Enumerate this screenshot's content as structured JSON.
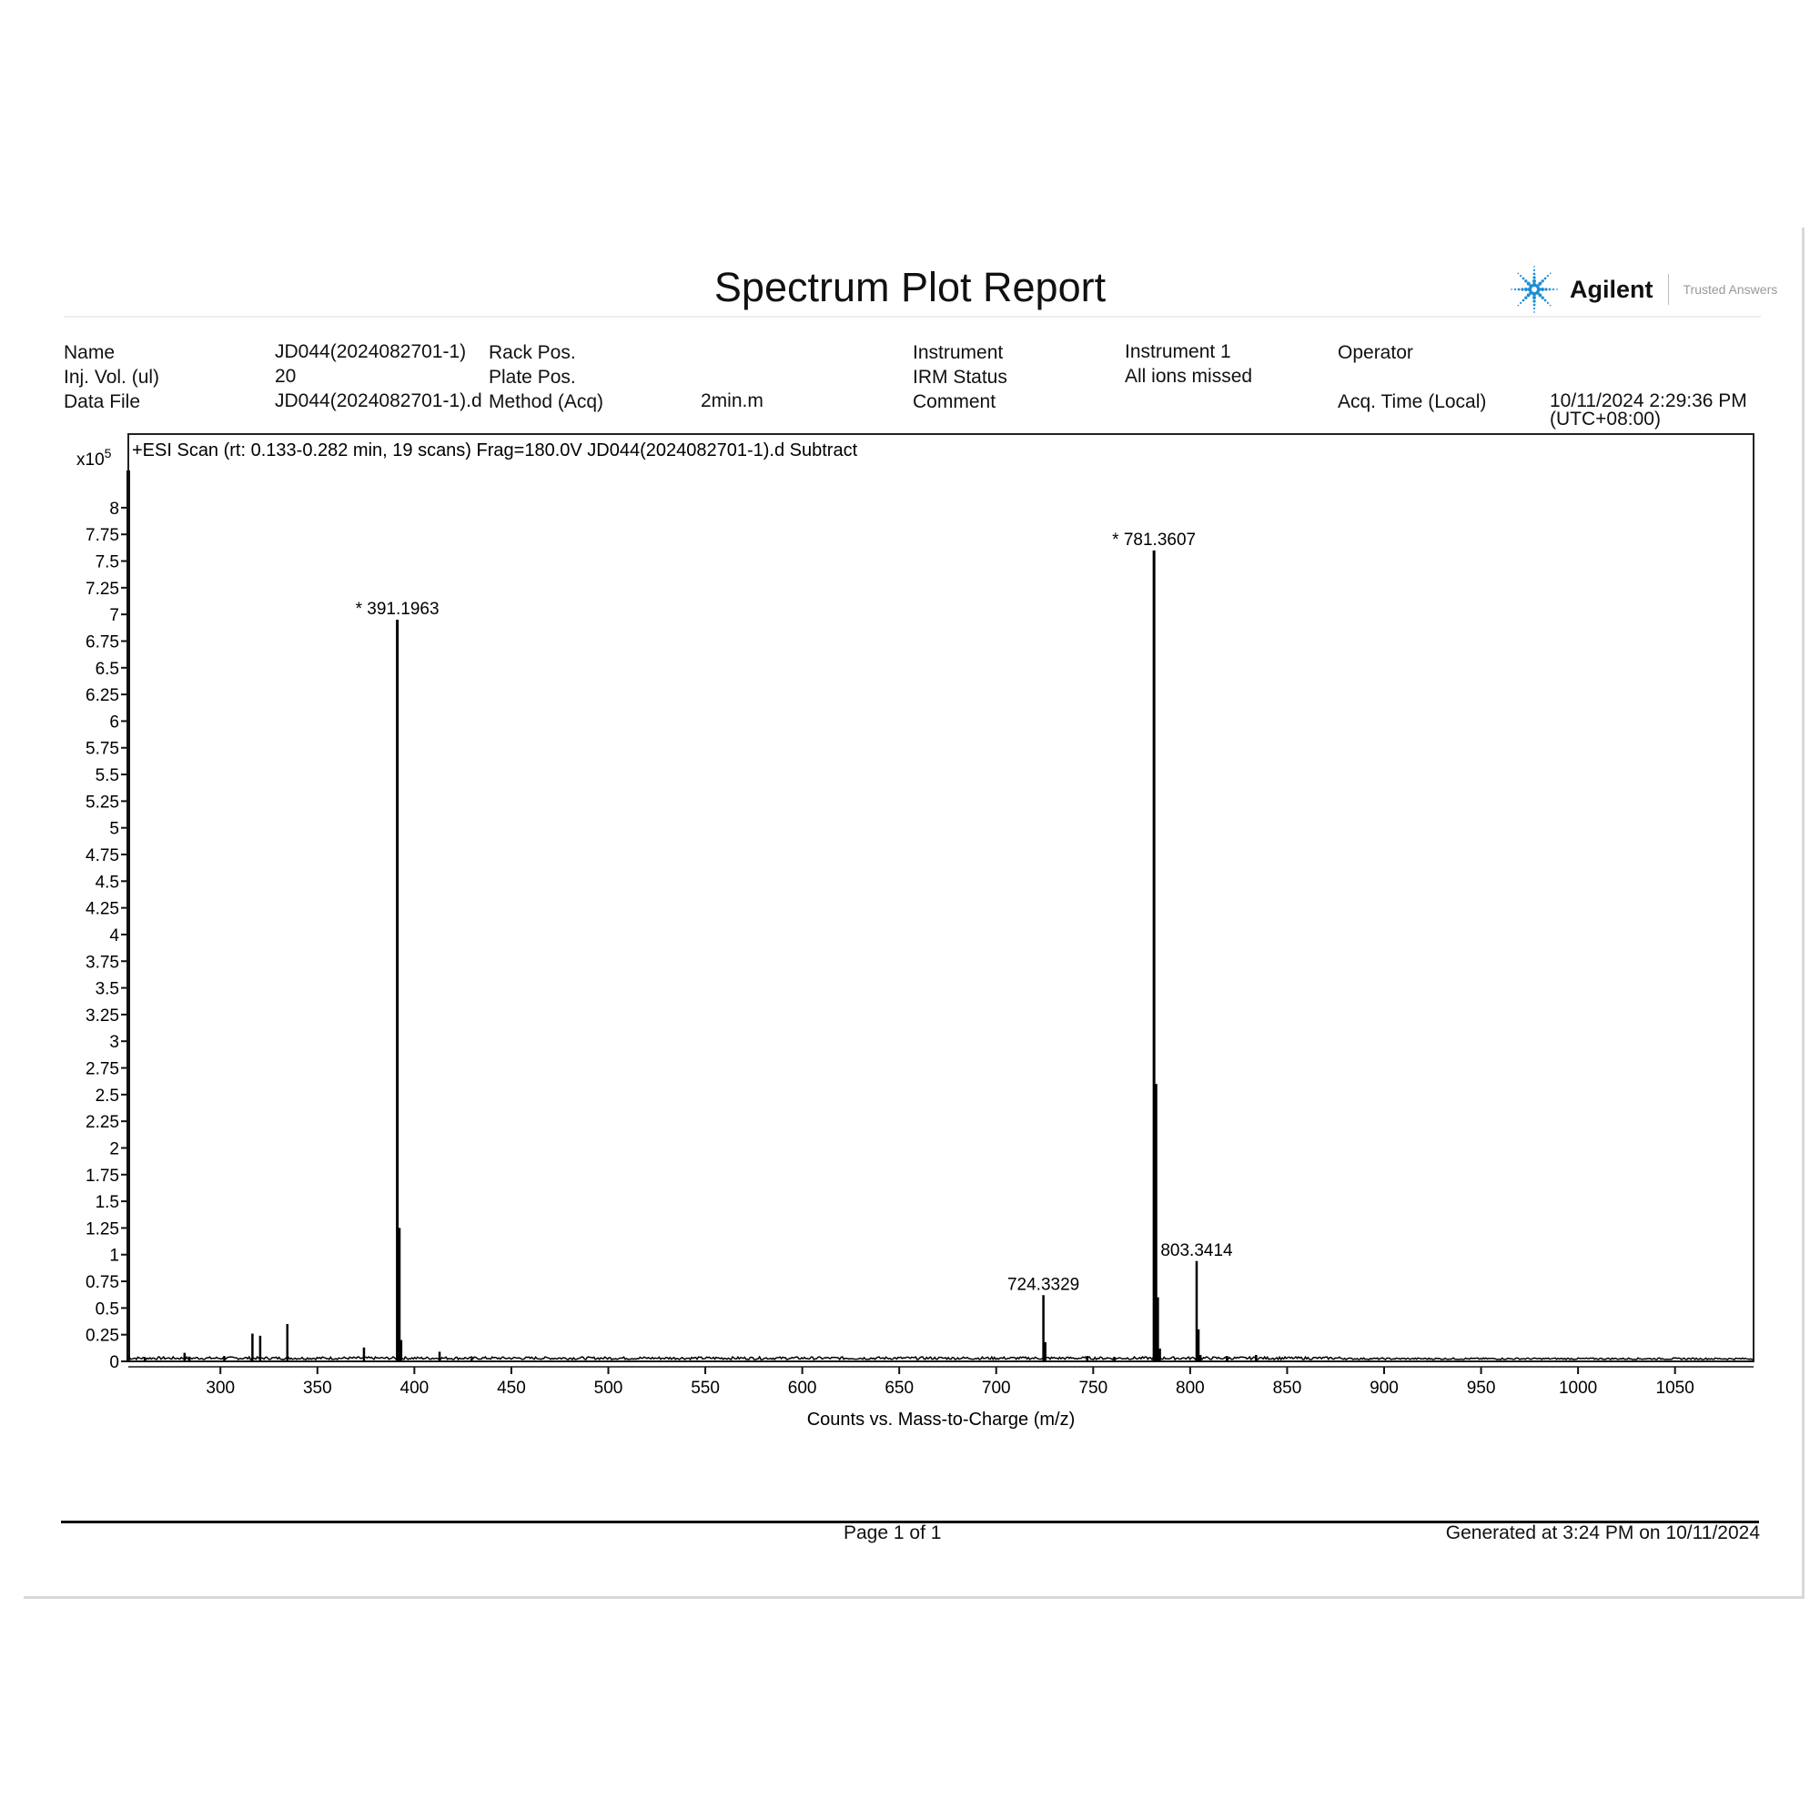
{
  "report": {
    "title": "Spectrum Plot Report",
    "logo": {
      "brand": "Agilent",
      "tagline": "Trusted Answers",
      "color": "#1a8fd6"
    },
    "meta": [
      {
        "label": "Name",
        "value": "JD044(2024082701-1)"
      },
      {
        "label": "Rack Pos.",
        "value": ""
      },
      {
        "label": "Instrument",
        "value": "Instrument 1"
      },
      {
        "label": "Operator",
        "value": ""
      },
      {
        "label": "Inj. Vol. (ul)",
        "value": "20"
      },
      {
        "label": "Plate Pos.",
        "value": ""
      },
      {
        "label": "IRM Status",
        "value": "All ions missed"
      },
      {
        "label": "Data File",
        "value": "JD044(2024082701-1).d"
      },
      {
        "label": "Method (Acq)",
        "value": "2min.m"
      },
      {
        "label": "Comment",
        "value": ""
      },
      {
        "label": "Acq. Time (Local)",
        "value": "10/11/2024 2:29:36 PM (UTC+08:00)"
      }
    ],
    "footer": {
      "page": "Page 1 of  1",
      "generated": "Generated at 3:24 PM on 10/11/2024"
    }
  },
  "chart_data": {
    "type": "bar",
    "title": "+ESI Scan (rt: 0.133-0.282 min, 19 scans) Frag=180.0V JD044(2024082701-1).d  Subtract",
    "xlabel": "Counts vs. Mass-to-Charge (m/z)",
    "ylabel": "",
    "y_multiplier": "x10^5",
    "xlim": [
      252.5,
      1090.5
    ],
    "ylim": [
      0,
      8.69
    ],
    "xticks": [
      300,
      350,
      400,
      450,
      500,
      550,
      600,
      650,
      700,
      750,
      800,
      850,
      900,
      950,
      1000,
      1050
    ],
    "yticks": [
      0,
      0.25,
      0.5,
      0.75,
      1,
      1.25,
      1.5,
      1.75,
      2,
      2.25,
      2.5,
      2.75,
      3,
      3.25,
      3.5,
      3.75,
      4,
      4.25,
      4.5,
      4.75,
      5,
      5.25,
      5.5,
      5.75,
      6,
      6.25,
      6.5,
      6.75,
      7,
      7.25,
      7.5,
      7.75,
      8
    ],
    "grid": false,
    "color": "#000000",
    "peaks": [
      {
        "mz": 261,
        "y": 0.04
      },
      {
        "mz": 281.5,
        "y": 0.08
      },
      {
        "mz": 284,
        "y": 0.04
      },
      {
        "mz": 302,
        "y": 0.05
      },
      {
        "mz": 316.5,
        "y": 0.26
      },
      {
        "mz": 320.5,
        "y": 0.24
      },
      {
        "mz": 334.5,
        "y": 0.35
      },
      {
        "mz": 374,
        "y": 0.13
      },
      {
        "mz": 391.1963,
        "y": 6.95,
        "label": "* 391.1963"
      },
      {
        "mz": 392.2,
        "y": 1.25
      },
      {
        "mz": 393.2,
        "y": 0.2
      },
      {
        "mz": 413,
        "y": 0.09
      },
      {
        "mz": 429.5,
        "y": 0.03
      },
      {
        "mz": 724.3329,
        "y": 0.62,
        "label": "724.3329"
      },
      {
        "mz": 725.3,
        "y": 0.18
      },
      {
        "mz": 747,
        "y": 0.05
      },
      {
        "mz": 761,
        "y": 0.04
      },
      {
        "mz": 781.3607,
        "y": 7.6,
        "label": "* 781.3607"
      },
      {
        "mz": 782.36,
        "y": 2.6
      },
      {
        "mz": 783.36,
        "y": 0.6
      },
      {
        "mz": 784.4,
        "y": 0.12
      },
      {
        "mz": 803.3414,
        "y": 0.94,
        "label": "803.3414"
      },
      {
        "mz": 804.3,
        "y": 0.3
      },
      {
        "mz": 805.3,
        "y": 0.06
      },
      {
        "mz": 819,
        "y": 0.05
      },
      {
        "mz": 834,
        "y": 0.06
      }
    ]
  }
}
